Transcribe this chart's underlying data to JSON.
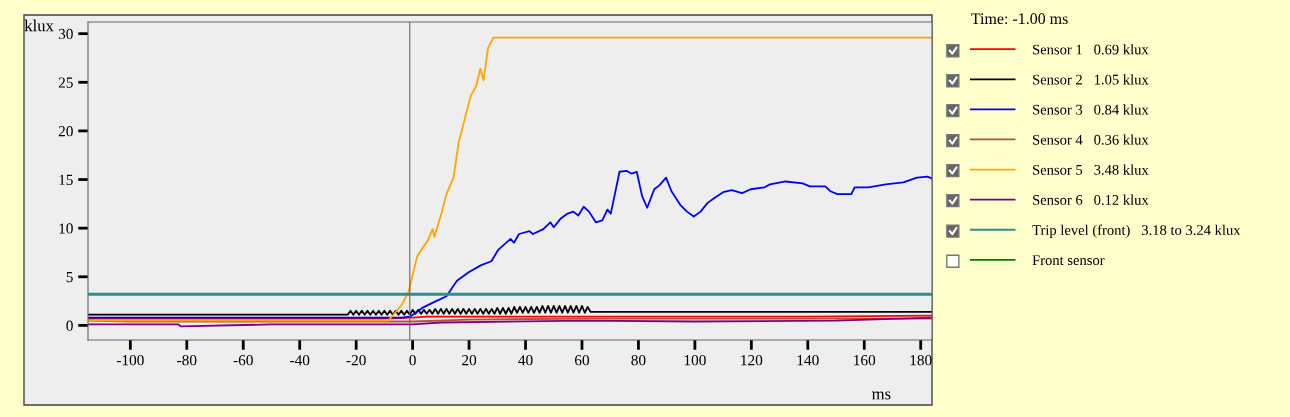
{
  "chart_data": {
    "type": "line",
    "xlabel": "ms",
    "ylabel": "klux",
    "legend_title": "Time: -1.00 ms",
    "legend": "right",
    "xlim": [
      -115,
      184
    ],
    "xticks": [
      -100,
      -80,
      -60,
      -40,
      -20,
      0,
      20,
      40,
      60,
      80,
      100,
      120,
      140,
      160,
      180
    ],
    "ylim": [
      -1.5,
      31.2
    ],
    "yticks": [
      0,
      5,
      10,
      15,
      20,
      25,
      30
    ],
    "grid": false,
    "marker": "none",
    "line_style": "solid",
    "ref_lines": [
      {
        "axis": "x",
        "value": -1,
        "color": "#666666"
      }
    ],
    "series": [
      {
        "name": "Sensor 1   0.69 klux",
        "color": "#ff0000",
        "x": [
          -115,
          -10,
          0,
          5,
          20,
          60,
          100,
          140,
          184
        ],
        "values": [
          0.7,
          0.7,
          0.8,
          0.9,
          0.9,
          0.9,
          0.9,
          0.9,
          1.0
        ]
      },
      {
        "name": "Sensor 2   1.05 klux",
        "color": "#000000",
        "x": [
          -115,
          -23,
          -22,
          -21,
          -20,
          -19,
          -18,
          -17,
          -16,
          -15,
          -14,
          -13,
          -12,
          -11,
          -10,
          -9,
          -8,
          -7,
          -6,
          -5,
          -4,
          -3,
          -2,
          -1,
          0,
          1,
          2,
          3,
          4,
          5,
          6,
          7,
          8,
          9,
          10,
          11,
          12,
          13,
          14,
          15,
          16,
          17,
          18,
          19,
          20,
          21,
          22,
          23,
          24,
          25,
          26,
          27,
          28,
          29,
          30,
          31,
          32,
          33,
          34,
          35,
          36,
          37,
          38,
          39,
          40,
          41,
          42,
          43,
          44,
          45,
          46,
          47,
          48,
          49,
          50,
          51,
          52,
          53,
          54,
          55,
          56,
          57,
          58,
          59,
          60,
          61,
          62,
          63,
          184
        ],
        "values": [
          1.1,
          1.1,
          1.5,
          1.1,
          1.5,
          1.1,
          1.5,
          1.1,
          1.5,
          1.1,
          1.5,
          1.1,
          1.5,
          1.1,
          1.5,
          1.1,
          1.5,
          1.1,
          1.5,
          1.1,
          1.5,
          1.1,
          1.5,
          1.1,
          1.6,
          1.2,
          1.6,
          1.2,
          1.6,
          1.2,
          1.6,
          1.2,
          1.7,
          1.2,
          1.7,
          1.2,
          1.7,
          1.2,
          1.7,
          1.2,
          1.7,
          1.2,
          1.7,
          1.2,
          1.7,
          1.2,
          1.7,
          1.2,
          1.7,
          1.2,
          1.7,
          1.2,
          1.7,
          1.2,
          1.8,
          1.2,
          1.8,
          1.2,
          1.8,
          1.2,
          1.9,
          1.3,
          1.9,
          1.3,
          1.9,
          1.3,
          1.9,
          1.3,
          1.9,
          1.3,
          2.0,
          1.3,
          2.0,
          1.3,
          2.0,
          1.3,
          2.0,
          1.3,
          2.0,
          1.3,
          2.0,
          1.3,
          2.0,
          1.3,
          2.0,
          1.3,
          1.9,
          1.4,
          1.4
        ]
      },
      {
        "name": "Sensor 3   0.84 klux",
        "color": "#0000ff",
        "x": [
          -115,
          -3.9,
          -0.9,
          3.4,
          8.3,
          12.0,
          15.7,
          20.0,
          24.3,
          27.9,
          30.4,
          34.7,
          35.9,
          37.7,
          41.4,
          42.6,
          46.3,
          48.8,
          50.0,
          52.5,
          54.9,
          56.9,
          58.7,
          60.6,
          62.5,
          64.9,
          67.2,
          69.0,
          70.2,
          73.3,
          75.7,
          77.6,
          79.4,
          81.3,
          83.1,
          85.6,
          87.4,
          89.8,
          91.7,
          94.8,
          97.2,
          99.6,
          102.0,
          104.5,
          106.9,
          110.0,
          113.1,
          116.7,
          119.8,
          124.7,
          126.6,
          132.1,
          138.2,
          140.7,
          146.2,
          148.0,
          150.5,
          155.4,
          156.6,
          161.5,
          167.6,
          173.8,
          178.7,
          182.4,
          184
        ],
        "values": [
          0.8,
          0.8,
          0.9,
          1.8,
          2.5,
          3.0,
          4.6,
          5.5,
          6.2,
          6.6,
          7.8,
          8.9,
          8.5,
          9.4,
          9.7,
          9.4,
          9.9,
          10.6,
          10.1,
          11.0,
          11.5,
          11.7,
          11.3,
          12.2,
          11.7,
          10.6,
          10.8,
          11.9,
          11.5,
          15.8,
          15.9,
          15.6,
          15.8,
          13.3,
          12.1,
          14.0,
          14.4,
          15.2,
          13.8,
          12.4,
          11.7,
          11.2,
          11.7,
          12.6,
          13.1,
          13.7,
          13.9,
          13.6,
          14.0,
          14.2,
          14.5,
          14.8,
          14.6,
          14.3,
          14.3,
          13.8,
          13.5,
          13.5,
          14.2,
          14.2,
          14.5,
          14.7,
          15.2,
          15.3,
          15.1
        ]
      },
      {
        "name": "Sensor 4   0.36 klux",
        "color": "#b5523b",
        "x": [
          -115,
          -100,
          -40,
          -10,
          0,
          20,
          60,
          100,
          150,
          184
        ],
        "values": [
          0.5,
          0.4,
          0.4,
          0.4,
          0.4,
          0.6,
          0.7,
          0.7,
          0.7,
          0.7
        ]
      },
      {
        "name": "Sensor 5   3.48 klux",
        "color": "#ffa500",
        "x": [
          -115,
          -8.6,
          -3.9,
          -1.5,
          1.6,
          5.3,
          7.1,
          7.7,
          10.2,
          12.0,
          14.5,
          16.3,
          18.8,
          20.6,
          22.5,
          24.0,
          25.1,
          26.7,
          28.6,
          184
        ],
        "values": [
          0.5,
          0.5,
          2.1,
          3.4,
          7.1,
          8.7,
          9.9,
          9.1,
          11.5,
          13.5,
          15.2,
          18.8,
          21.6,
          23.6,
          24.6,
          26.4,
          25.2,
          28.5,
          29.6,
          29.6
        ]
      },
      {
        "name": "Sensor 6   0.12 klux",
        "color": "#800080",
        "x": [
          -115,
          -100,
          -83,
          -82,
          -50,
          0,
          10,
          60,
          100,
          150,
          184
        ],
        "values": [
          0.1,
          0.1,
          0.1,
          -0.1,
          0.1,
          0.1,
          0.3,
          0.5,
          0.4,
          0.5,
          0.8
        ]
      },
      {
        "name": "Trip level (front)   3.18 to 3.24 klux",
        "color": "#2a9090",
        "x": [
          -115,
          184
        ],
        "values": [
          3.2,
          3.2
        ]
      },
      {
        "name": "Front sensor",
        "color": "#008000"
      }
    ]
  }
}
